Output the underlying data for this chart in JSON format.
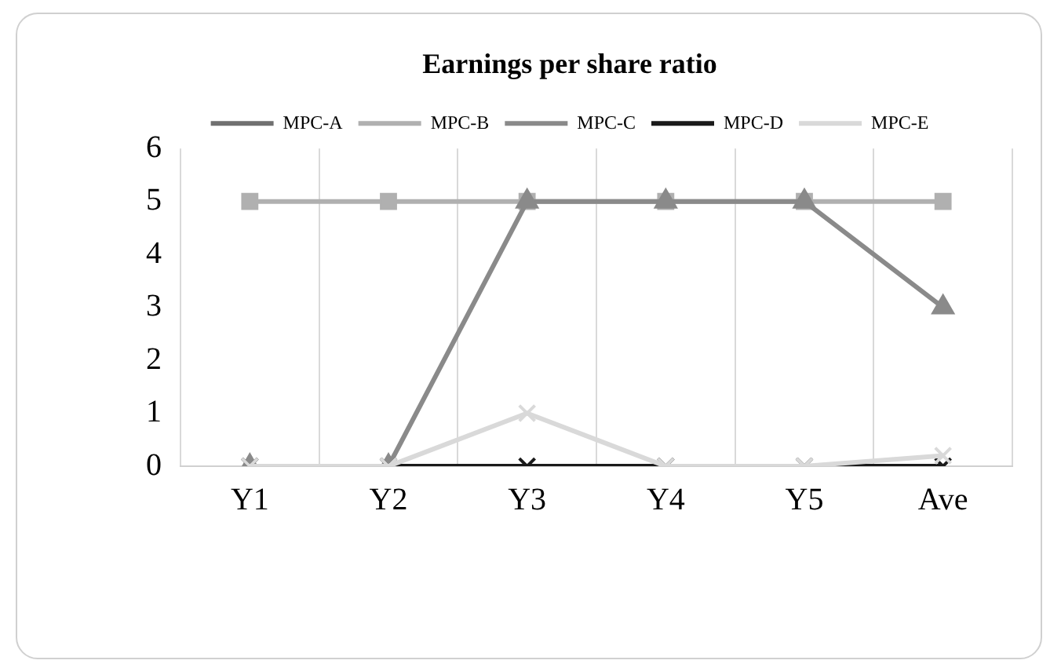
{
  "chart_data": {
    "type": "line",
    "title": "Earnings per share ratio",
    "categories": [
      "Y1",
      "Y2",
      "Y3",
      "Y4",
      "Y5",
      "Ave"
    ],
    "series": [
      {
        "name": "MPC-A",
        "color": "#707070",
        "marker": "diamond",
        "values": [
          null,
          null,
          null,
          null,
          null,
          null
        ]
      },
      {
        "name": "MPC-B",
        "color": "#b0b0b0",
        "marker": "square",
        "values": [
          5,
          5,
          5,
          5,
          5,
          5
        ]
      },
      {
        "name": "MPC-C",
        "color": "#8a8a8a",
        "marker": "triangle",
        "values": [
          0,
          0,
          5,
          5,
          5,
          3
        ]
      },
      {
        "name": "MPC-D",
        "color": "#1a1a1a",
        "marker": "cross",
        "values": [
          0,
          0,
          0,
          0,
          0,
          0
        ]
      },
      {
        "name": "MPC-E",
        "color": "#d9d9d9",
        "marker": "cross",
        "values": [
          0,
          0,
          1,
          0,
          0,
          0.2
        ]
      }
    ],
    "ylim": [
      0,
      6
    ],
    "yticks": [
      0,
      1,
      2,
      3,
      4,
      5,
      6
    ],
    "grid": "x",
    "legend": "top"
  }
}
